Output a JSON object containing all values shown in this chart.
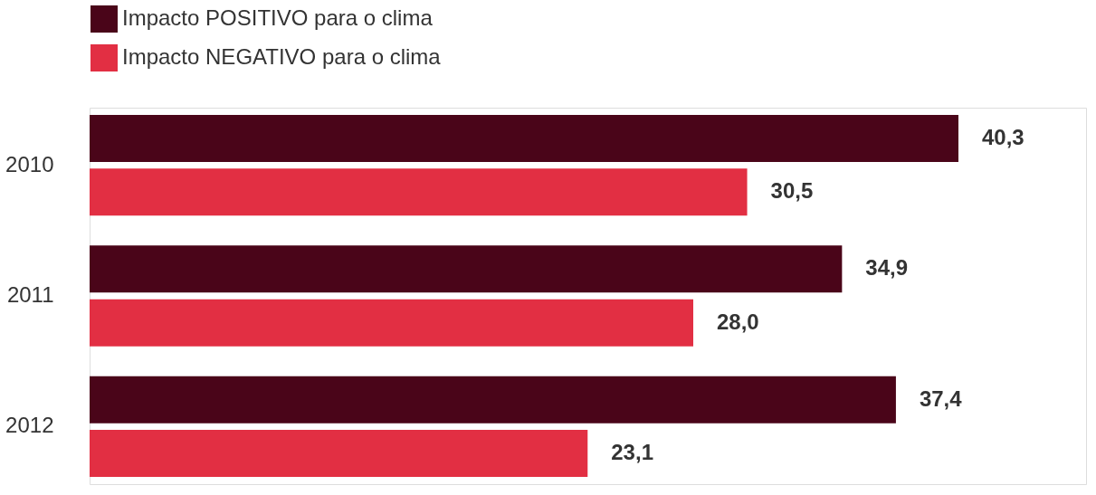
{
  "chart_data": {
    "type": "bar",
    "orientation": "horizontal",
    "legend": "top left",
    "grid": false,
    "categories": [
      "2010",
      "2011",
      "2012"
    ],
    "series": [
      {
        "name": "Impacto POSITIVO para o clima",
        "color": "#4a0519",
        "values": [
          40.3,
          34.9,
          37.4
        ],
        "value_labels": [
          "40,3",
          "34,9",
          "37,4"
        ]
      },
      {
        "name": "Impacto NEGATIVO para o clima",
        "color": "#e22f43",
        "values": [
          30.5,
          28.0,
          23.1
        ],
        "value_labels": [
          "30,5",
          "28,0",
          "23,1"
        ]
      }
    ]
  }
}
